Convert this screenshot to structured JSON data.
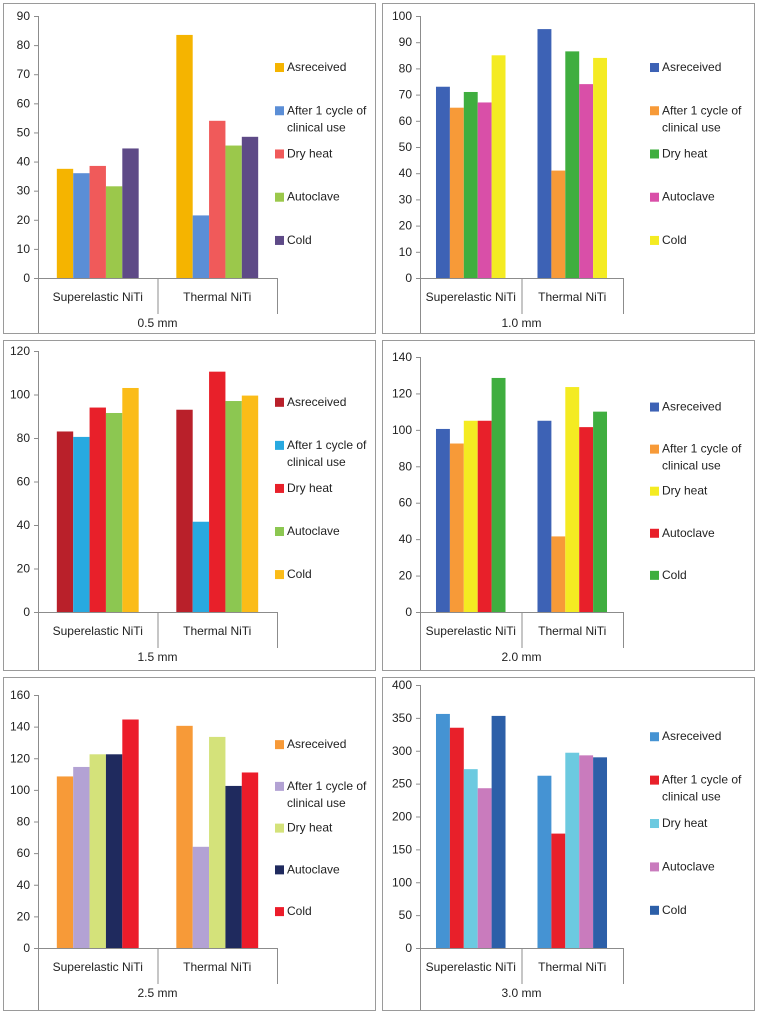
{
  "chart_data": [
    {
      "type": "bar",
      "title": "0.5 mm",
      "categories": [
        "Superelastic NiTi",
        "Thermal NiTi"
      ],
      "ylim": [
        0,
        90
      ],
      "ytick_step": 10,
      "series": [
        {
          "name": "As received",
          "color": "#f5b400",
          "values": [
            37.5,
            83.5
          ]
        },
        {
          "name": "After 1 cycle of clinical use",
          "color": "#5b8ed6",
          "values": [
            36,
            21.5
          ]
        },
        {
          "name": "Dry heat",
          "color": "#f05a5a",
          "values": [
            38.5,
            54
          ]
        },
        {
          "name": "Autoclave",
          "color": "#9bc84b",
          "values": [
            31.5,
            45.5
          ]
        },
        {
          "name": "Cold",
          "color": "#5e4a87",
          "values": [
            44.5,
            48.5
          ]
        }
      ]
    },
    {
      "type": "bar",
      "title": "1.0 mm",
      "categories": [
        "Superelastic NiTi",
        "Thermal NiTi"
      ],
      "ylim": [
        0,
        100
      ],
      "ytick_step": 10,
      "series": [
        {
          "name": "As received",
          "color": "#3d62b5",
          "values": [
            73,
            95
          ]
        },
        {
          "name": "After 1 cycle of clinical use",
          "color": "#f79a38",
          "values": [
            65,
            41
          ]
        },
        {
          "name": "Dry heat",
          "color": "#3fae3f",
          "values": [
            71,
            86.5
          ]
        },
        {
          "name": "Autoclave",
          "color": "#d94fa8",
          "values": [
            67,
            74
          ]
        },
        {
          "name": "Cold",
          "color": "#f4eb22",
          "values": [
            85,
            84
          ]
        }
      ]
    },
    {
      "type": "bar",
      "title": "1.5 mm",
      "categories": [
        "Superelastic NiTi",
        "Thermal NiTi"
      ],
      "ylim": [
        0,
        120
      ],
      "ytick_step": 20,
      "series": [
        {
          "name": "As received",
          "color": "#b9202a",
          "values": [
            83,
            93
          ]
        },
        {
          "name": "After 1 cycle of clinical use",
          "color": "#28a9e0",
          "values": [
            80.5,
            41.5
          ]
        },
        {
          "name": "Dry heat",
          "color": "#e8202a",
          "values": [
            94,
            110.5
          ]
        },
        {
          "name": "Autoclave",
          "color": "#8cc751",
          "values": [
            91.5,
            97
          ]
        },
        {
          "name": "Cold",
          "color": "#fbbc18",
          "values": [
            103,
            99.5
          ]
        }
      ]
    },
    {
      "type": "bar",
      "title": "2.0 mm",
      "categories": [
        "Superelastic NiTi",
        "Thermal NiTi"
      ],
      "ylim": [
        0,
        140
      ],
      "ytick_step": 20,
      "series": [
        {
          "name": "As received",
          "color": "#3d62b5",
          "values": [
            100.5,
            105
          ]
        },
        {
          "name": "After 1 cycle of clinical use",
          "color": "#f79a38",
          "values": [
            92.5,
            41.5
          ]
        },
        {
          "name": "Dry heat",
          "color": "#f4eb22",
          "values": [
            105,
            123.5
          ]
        },
        {
          "name": "Autoclave",
          "color": "#e8202a",
          "values": [
            105,
            101.5
          ]
        },
        {
          "name": "Cold",
          "color": "#3fae3f",
          "values": [
            128.5,
            110
          ]
        }
      ]
    },
    {
      "type": "bar",
      "title": "2.5 mm",
      "categories": [
        "Superelastic NiTi",
        "Thermal NiTi"
      ],
      "ylim": [
        0,
        160
      ],
      "ytick_step": 20,
      "series": [
        {
          "name": "As received",
          "color": "#f79a38",
          "values": [
            108.5,
            140.5
          ]
        },
        {
          "name": "After 1 cycle of clinical use",
          "color": "#b3a2d4",
          "values": [
            114.5,
            64
          ]
        },
        {
          "name": "Dry heat",
          "color": "#d4e27a",
          "values": [
            122.5,
            133.5
          ]
        },
        {
          "name": "Autoclave",
          "color": "#1f2a5e",
          "values": [
            122.5,
            102.5
          ]
        },
        {
          "name": "Cold",
          "color": "#ec1c2a",
          "values": [
            144.5,
            111
          ]
        }
      ]
    },
    {
      "type": "bar",
      "title": "3.0 mm",
      "categories": [
        "Superelastic NiTi",
        "Thermal NiTi"
      ],
      "ylim": [
        0,
        400
      ],
      "ytick_step": 50,
      "series": [
        {
          "name": "As received",
          "color": "#4593d3",
          "values": [
            356,
            262
          ]
        },
        {
          "name": "After 1 cycle of clinical use",
          "color": "#e8202a",
          "values": [
            335,
            174
          ]
        },
        {
          "name": "Dry heat",
          "color": "#6ccae0",
          "values": [
            272,
            297
          ]
        },
        {
          "name": "Autoclave",
          "color": "#c97bbd",
          "values": [
            243,
            293
          ]
        },
        {
          "name": "Cold",
          "color": "#2c5fa8",
          "values": [
            353,
            290
          ]
        }
      ]
    }
  ]
}
